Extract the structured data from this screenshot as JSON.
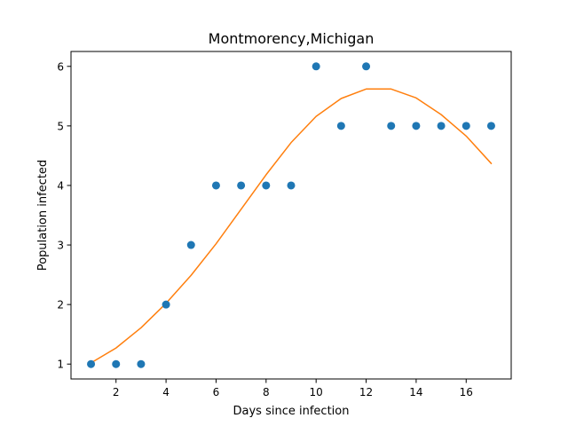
{
  "chart_data": {
    "type": "scatter",
    "title": "Montmorency,Michigan",
    "xlabel": "Days since infection",
    "ylabel": "Population infected",
    "xlim": [
      0.2,
      17.8
    ],
    "ylim": [
      0.75,
      6.25
    ],
    "xticks": [
      2,
      4,
      6,
      8,
      10,
      12,
      14,
      16
    ],
    "yticks": [
      1,
      2,
      3,
      4,
      5,
      6
    ],
    "grid": false,
    "series": [
      {
        "kind": "scatter",
        "color": "#1f77b4",
        "x": [
          1,
          2,
          3,
          4,
          5,
          6,
          7,
          8,
          9,
          10,
          11,
          12,
          13,
          14,
          15,
          16,
          17
        ],
        "y": [
          1,
          1,
          1,
          2,
          3,
          4,
          4,
          4,
          4,
          6,
          5,
          6,
          5,
          5,
          5,
          5,
          5
        ]
      },
      {
        "kind": "line",
        "color": "#ff7f0e",
        "x": [
          1,
          2,
          3,
          4,
          5,
          6,
          7,
          8,
          9,
          10,
          11,
          12,
          13,
          14,
          15,
          16,
          17
        ],
        "y": [
          1.02,
          1.27,
          1.61,
          2.02,
          2.49,
          3.02,
          3.6,
          4.18,
          4.72,
          5.16,
          5.46,
          5.62,
          5.62,
          5.47,
          5.19,
          4.83,
          4.37
        ]
      }
    ]
  }
}
